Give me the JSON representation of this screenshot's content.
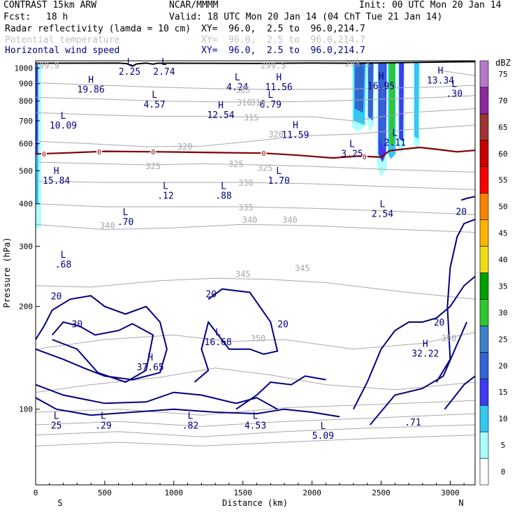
{
  "header": {
    "model": "CONTRAST 15km ARW",
    "center": "NCAR/MMMM",
    "init": "Init: 00 UTC Mon 20 Jan 14",
    "fcst_label": "Fcst:",
    "fcst_value": "18 h",
    "valid": "Valid: 18 UTC Mon 20 Jan 14 (04 ChT Tue 21 Jan 14)",
    "fields": [
      {
        "name": "Radar reflectivity (lamda = 10 cm)",
        "xy": "XY=  96.0,  2.5 to  96.0,214.7",
        "color": "#000000"
      },
      {
        "name": "Potential temperature",
        "xy": "XY=  96.0,  2.5 to  96.0,214.7",
        "color": "#c0c0c0"
      },
      {
        "name": "Horizontal wind speed",
        "xy": "XY=  96.0,  2.5 to  96.0,214.7",
        "color": "#000080"
      }
    ]
  },
  "chart_data": {
    "type": "cross-section",
    "xlabel": "Distance (km)",
    "ylabel": "Pressure (hPa)",
    "xlim": [
      0,
      3180
    ],
    "ylim": [
      1050,
      60
    ],
    "y_log_scale": true,
    "x_ticks": [
      0,
      500,
      1000,
      1500,
      2000,
      2500,
      3000
    ],
    "y_ticks": [
      100,
      200,
      300,
      400,
      500,
      600,
      700,
      800,
      900,
      1000
    ],
    "x_end_labels": {
      "left": "S",
      "right": "N"
    },
    "colorbar": {
      "unit": "dBZ",
      "levels": [
        0,
        5,
        10,
        15,
        20,
        25,
        30,
        35,
        40,
        45,
        50,
        55,
        60,
        65,
        70,
        75
      ],
      "colors": [
        "#ffffff",
        "#aaffff",
        "#32c8f0",
        "#3c3cf0",
        "#3264d2",
        "#3c82c8",
        "#2dc82d",
        "#00a000",
        "#f0dc14",
        "#fab400",
        "#fa8200",
        "#fa0000",
        "#c80000",
        "#a03232",
        "#8c28a0",
        "#b478c8"
      ]
    },
    "wind_speed_contours": [
      20,
      30
    ],
    "theta_contour_labels": [
      {
        "x": 1610,
        "p": 162,
        "v": "350"
      },
      {
        "x": 2990,
        "p": 162,
        "v": "350"
      },
      {
        "x": 1500,
        "p": 250,
        "v": "345"
      },
      {
        "x": 1930,
        "p": 260,
        "v": "345"
      },
      {
        "x": 520,
        "p": 347,
        "v": "340"
      },
      {
        "x": 1550,
        "p": 360,
        "v": "340"
      },
      {
        "x": 1840,
        "p": 360,
        "v": "340"
      },
      {
        "x": 1520,
        "p": 392,
        "v": "335"
      },
      {
        "x": 1520,
        "p": 462,
        "v": "330"
      },
      {
        "x": 850,
        "p": 518,
        "v": "325"
      },
      {
        "x": 1450,
        "p": 525,
        "v": "325"
      },
      {
        "x": 1660,
        "p": 512,
        "v": "325"
      },
      {
        "x": 1080,
        "p": 590,
        "v": "320"
      },
      {
        "x": 1740,
        "p": 642,
        "v": "320"
      },
      {
        "x": 1560,
        "p": 718,
        "v": "315"
      },
      {
        "x": 1510,
        "p": 795,
        "v": "310"
      },
      {
        "x": 1610,
        "p": 795,
        "v": "310"
      },
      {
        "x": 1500,
        "p": 865,
        "v": "305"
      },
      {
        "x": 80,
        "p": 1020,
        "v": "299.9"
      },
      {
        "x": 1720,
        "p": 1020,
        "v": "299.5"
      },
      {
        "x": 2330,
        "p": 1035,
        "v": "298.1"
      }
    ],
    "freezing_level": {
      "label": "0",
      "x": [
        0,
        230,
        500,
        900,
        1300,
        1650,
        1900,
        2150,
        2330,
        2500,
        2560,
        2650,
        2780,
        2900,
        3050,
        3180
      ],
      "p": [
        560,
        564,
        570,
        568,
        565,
        563,
        555,
        545,
        552,
        548,
        572,
        578,
        585,
        578,
        568,
        574
      ]
    },
    "extrema": [
      {
        "t": "L",
        "v": "25",
        "x": 150,
        "p": 91
      },
      {
        "t": "L",
        "v": ".29",
        "x": 490,
        "p": 91
      },
      {
        "t": "L",
        "v": ".82",
        "x": 1120,
        "p": 91
      },
      {
        "t": "L",
        "v": "4.53",
        "x": 1590,
        "p": 91
      },
      {
        "t": "L",
        "v": "5.09",
        "x": 2080,
        "p": 85
      },
      {
        "t": "",
        "v": ".71",
        "x": 2730,
        "p": 93
      },
      {
        "t": "H",
        "v": "37.65",
        "x": 830,
        "p": 135
      },
      {
        "t": "L",
        "v": "16.68",
        "x": 1320,
        "p": 160
      },
      {
        "t": "H",
        "v": "32.22",
        "x": 2820,
        "p": 148
      },
      {
        "t": "L",
        "v": ".68",
        "x": 200,
        "p": 270
      },
      {
        "t": "L",
        "v": ".70",
        "x": 650,
        "p": 360
      },
      {
        "t": "L",
        "v": ".12",
        "x": 940,
        "p": 430
      },
      {
        "t": "L",
        "v": ".88",
        "x": 1360,
        "p": 430
      },
      {
        "t": "L",
        "v": "2.54",
        "x": 2510,
        "p": 380
      },
      {
        "t": "H",
        "v": "15.84",
        "x": 150,
        "p": 475
      },
      {
        "t": "L",
        "v": "1.70",
        "x": 1760,
        "p": 475
      },
      {
        "t": "L",
        "v": "3.25",
        "x": 2290,
        "p": 570
      },
      {
        "t": "L",
        "v": "2.11",
        "x": 2600,
        "p": 615
      },
      {
        "t": "H",
        "v": "11.59",
        "x": 1880,
        "p": 648
      },
      {
        "t": "L",
        "v": "10.09",
        "x": 200,
        "p": 690
      },
      {
        "t": "H",
        "v": "12.54",
        "x": 1340,
        "p": 740
      },
      {
        "t": "L",
        "v": "4.57",
        "x": 860,
        "p": 795
      },
      {
        "t": "L",
        "v": "6.79",
        "x": 1700,
        "p": 795
      },
      {
        "t": "L",
        "v": ".30",
        "x": 3030,
        "p": 855
      },
      {
        "t": "H",
        "v": "19.86",
        "x": 400,
        "p": 880
      },
      {
        "t": "L",
        "v": "4.24",
        "x": 1460,
        "p": 895
      },
      {
        "t": "H",
        "v": "11.56",
        "x": 1760,
        "p": 895
      },
      {
        "t": "H",
        "v": "16.95",
        "x": 2500,
        "p": 900
      },
      {
        "t": "H",
        "v": "13.34",
        "x": 2930,
        "p": 935
      },
      {
        "t": "L",
        "v": "2.25",
        "x": 680,
        "p": 992
      },
      {
        "t": "L",
        "v": "2.74",
        "x": 930,
        "p": 992
      }
    ]
  }
}
